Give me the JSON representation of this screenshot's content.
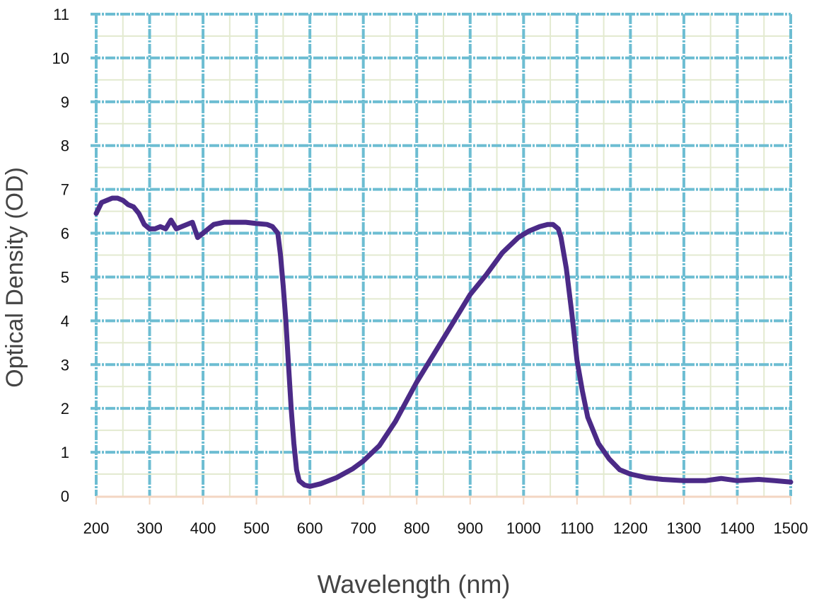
{
  "chart_data": {
    "type": "line",
    "title": "",
    "xlabel": "Wavelength (nm)",
    "ylabel": "Optical Density (OD)",
    "xlim": [
      200,
      1500
    ],
    "ylim": [
      0,
      11
    ],
    "xticks": [
      200,
      300,
      400,
      500,
      600,
      700,
      800,
      900,
      1000,
      1100,
      1200,
      1300,
      1400,
      1500
    ],
    "yticks": [
      0,
      1,
      2,
      3,
      4,
      5,
      6,
      7,
      8,
      9,
      10,
      11
    ],
    "grid": true,
    "minor_grid": true,
    "legend": "none",
    "colors": {
      "line": "#4b2a87",
      "major_grid": "#6dbdd2",
      "minor_grid": "#e3ead0",
      "x_axis": "#f3d6c2"
    },
    "series": [
      {
        "x": [
          200,
          210,
          220,
          230,
          240,
          250,
          260,
          270,
          280,
          290,
          300,
          310,
          320,
          330,
          340,
          350,
          360,
          370,
          380,
          390,
          400,
          410,
          420,
          440,
          460,
          480,
          500,
          520,
          530,
          540,
          545,
          550,
          555,
          560,
          565,
          570,
          575,
          580,
          590,
          600,
          620,
          650,
          680,
          700,
          730,
          760,
          800,
          830,
          860,
          880,
          900,
          930,
          960,
          990,
          1010,
          1030,
          1045,
          1055,
          1065,
          1070,
          1080,
          1090,
          1100,
          1110,
          1120,
          1140,
          1160,
          1180,
          1200,
          1230,
          1260,
          1300,
          1340,
          1370,
          1400,
          1440,
          1470,
          1500
        ],
        "y": [
          6.45,
          6.7,
          6.75,
          6.8,
          6.8,
          6.75,
          6.65,
          6.6,
          6.45,
          6.2,
          6.1,
          6.1,
          6.15,
          6.1,
          6.3,
          6.1,
          6.15,
          6.2,
          6.25,
          5.9,
          6.0,
          6.1,
          6.2,
          6.25,
          6.25,
          6.25,
          6.22,
          6.2,
          6.15,
          6.0,
          5.5,
          4.8,
          4.0,
          3.0,
          2.0,
          1.2,
          0.6,
          0.35,
          0.25,
          0.22,
          0.28,
          0.42,
          0.62,
          0.8,
          1.15,
          1.7,
          2.6,
          3.2,
          3.8,
          4.2,
          4.6,
          5.05,
          5.55,
          5.9,
          6.05,
          6.15,
          6.2,
          6.2,
          6.1,
          5.9,
          5.2,
          4.2,
          3.1,
          2.4,
          1.8,
          1.2,
          0.85,
          0.6,
          0.5,
          0.42,
          0.38,
          0.35,
          0.35,
          0.4,
          0.35,
          0.38,
          0.35,
          0.32
        ]
      }
    ]
  }
}
